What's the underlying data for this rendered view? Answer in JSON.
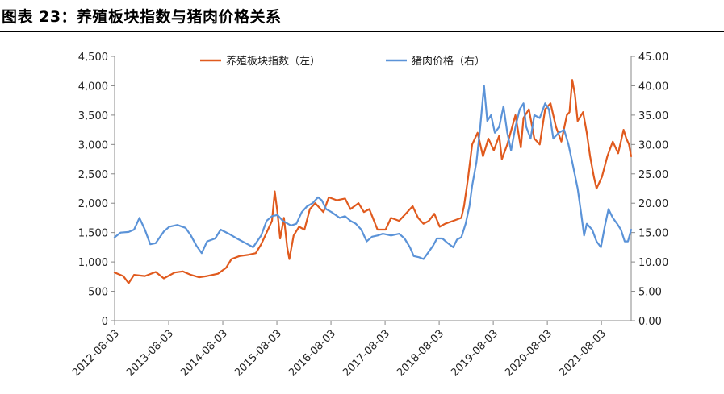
{
  "title": "图表 23：养殖板块指数与猪肉价格关系",
  "chart_data": {
    "type": "line",
    "title": "",
    "xlabel": "",
    "ylabel_left": "",
    "ylabel_right": "",
    "legend_position": "top",
    "grid": false,
    "x_tick_labels": [
      "2012-08-03",
      "2013-08-03",
      "2014-08-03",
      "2015-08-03",
      "2016-08-03",
      "2017-08-03",
      "2018-08-03",
      "2019-08-03",
      "2020-08-03",
      "2021-08-03"
    ],
    "x_range": [
      2012.59,
      2022.14
    ],
    "y_left": {
      "range": [
        0,
        4500
      ],
      "ticks": [
        "0",
        "500",
        "1,000",
        "1,500",
        "2,000",
        "2,500",
        "3,000",
        "3,500",
        "4,000",
        "4,500"
      ]
    },
    "y_right": {
      "range": [
        0,
        45
      ],
      "ticks": [
        "0.00",
        "5.00",
        "10.00",
        "15.00",
        "20.00",
        "25.00",
        "30.00",
        "35.00",
        "40.00",
        "45.00"
      ]
    },
    "series": [
      {
        "name": "养殖板块指数（左）",
        "axis": "left",
        "color": "#e05a1e",
        "points": [
          [
            2012.59,
            820
          ],
          [
            2012.75,
            760
          ],
          [
            2012.85,
            640
          ],
          [
            2012.95,
            780
          ],
          [
            2013.15,
            760
          ],
          [
            2013.35,
            830
          ],
          [
            2013.5,
            720
          ],
          [
            2013.7,
            820
          ],
          [
            2013.85,
            840
          ],
          [
            2014.0,
            780
          ],
          [
            2014.15,
            740
          ],
          [
            2014.3,
            760
          ],
          [
            2014.5,
            800
          ],
          [
            2014.65,
            900
          ],
          [
            2014.75,
            1050
          ],
          [
            2014.9,
            1100
          ],
          [
            2015.05,
            1120
          ],
          [
            2015.2,
            1150
          ],
          [
            2015.3,
            1300
          ],
          [
            2015.4,
            1500
          ],
          [
            2015.5,
            1700
          ],
          [
            2015.55,
            2200
          ],
          [
            2015.6,
            1850
          ],
          [
            2015.65,
            1400
          ],
          [
            2015.72,
            1750
          ],
          [
            2015.78,
            1250
          ],
          [
            2015.82,
            1050
          ],
          [
            2015.9,
            1450
          ],
          [
            2016.0,
            1600
          ],
          [
            2016.1,
            1550
          ],
          [
            2016.2,
            1900
          ],
          [
            2016.3,
            2000
          ],
          [
            2016.45,
            1850
          ],
          [
            2016.55,
            2100
          ],
          [
            2016.7,
            2050
          ],
          [
            2016.85,
            2080
          ],
          [
            2016.95,
            1900
          ],
          [
            2017.1,
            2000
          ],
          [
            2017.2,
            1850
          ],
          [
            2017.3,
            1900
          ],
          [
            2017.45,
            1550
          ],
          [
            2017.6,
            1550
          ],
          [
            2017.7,
            1750
          ],
          [
            2017.85,
            1700
          ],
          [
            2018.0,
            1850
          ],
          [
            2018.1,
            1950
          ],
          [
            2018.2,
            1750
          ],
          [
            2018.3,
            1650
          ],
          [
            2018.4,
            1700
          ],
          [
            2018.5,
            1820
          ],
          [
            2018.6,
            1600
          ],
          [
            2018.7,
            1650
          ],
          [
            2018.85,
            1700
          ],
          [
            2019.0,
            1750
          ],
          [
            2019.05,
            1950
          ],
          [
            2019.12,
            2400
          ],
          [
            2019.2,
            3000
          ],
          [
            2019.3,
            3200
          ],
          [
            2019.4,
            2800
          ],
          [
            2019.5,
            3100
          ],
          [
            2019.6,
            2900
          ],
          [
            2019.7,
            3150
          ],
          [
            2019.75,
            2750
          ],
          [
            2019.85,
            3000
          ],
          [
            2020.0,
            3500
          ],
          [
            2020.1,
            2950
          ],
          [
            2020.15,
            3450
          ],
          [
            2020.25,
            3600
          ],
          [
            2020.35,
            3100
          ],
          [
            2020.45,
            3000
          ],
          [
            2020.55,
            3600
          ],
          [
            2020.65,
            3700
          ],
          [
            2020.75,
            3300
          ],
          [
            2020.85,
            3050
          ],
          [
            2020.95,
            3500
          ],
          [
            2021.0,
            3550
          ],
          [
            2021.05,
            4100
          ],
          [
            2021.1,
            3850
          ],
          [
            2021.15,
            3400
          ],
          [
            2021.25,
            3550
          ],
          [
            2021.32,
            3200
          ],
          [
            2021.38,
            2800
          ],
          [
            2021.45,
            2450
          ],
          [
            2021.5,
            2250
          ],
          [
            2021.6,
            2450
          ],
          [
            2021.7,
            2800
          ],
          [
            2021.8,
            3050
          ],
          [
            2021.9,
            2850
          ],
          [
            2022.0,
            3250
          ],
          [
            2022.05,
            3100
          ],
          [
            2022.1,
            3000
          ],
          [
            2022.14,
            2800
          ]
        ]
      },
      {
        "name": "猪肉价格（右）",
        "axis": "right",
        "color": "#5b93d8",
        "points": [
          [
            2012.59,
            14.2
          ],
          [
            2012.7,
            15.0
          ],
          [
            2012.85,
            15.1
          ],
          [
            2012.95,
            15.5
          ],
          [
            2013.05,
            17.5
          ],
          [
            2013.15,
            15.5
          ],
          [
            2013.25,
            13.0
          ],
          [
            2013.35,
            13.2
          ],
          [
            2013.5,
            15.2
          ],
          [
            2013.6,
            16.0
          ],
          [
            2013.75,
            16.3
          ],
          [
            2013.9,
            15.8
          ],
          [
            2014.0,
            14.5
          ],
          [
            2014.1,
            12.8
          ],
          [
            2014.2,
            11.5
          ],
          [
            2014.3,
            13.5
          ],
          [
            2014.45,
            14.0
          ],
          [
            2014.55,
            15.5
          ],
          [
            2014.7,
            14.8
          ],
          [
            2014.85,
            14.0
          ],
          [
            2014.95,
            13.5
          ],
          [
            2015.05,
            13.0
          ],
          [
            2015.15,
            12.5
          ],
          [
            2015.3,
            14.5
          ],
          [
            2015.4,
            17.0
          ],
          [
            2015.5,
            17.8
          ],
          [
            2015.6,
            18.0
          ],
          [
            2015.7,
            17.0
          ],
          [
            2015.85,
            16.2
          ],
          [
            2015.95,
            16.5
          ],
          [
            2016.05,
            18.5
          ],
          [
            2016.15,
            19.5
          ],
          [
            2016.25,
            20.0
          ],
          [
            2016.35,
            21.0
          ],
          [
            2016.42,
            20.5
          ],
          [
            2016.5,
            19.0
          ],
          [
            2016.6,
            18.5
          ],
          [
            2016.75,
            17.5
          ],
          [
            2016.85,
            17.8
          ],
          [
            2016.95,
            17.0
          ],
          [
            2017.05,
            16.5
          ],
          [
            2017.15,
            15.5
          ],
          [
            2017.25,
            13.5
          ],
          [
            2017.35,
            14.3
          ],
          [
            2017.45,
            14.5
          ],
          [
            2017.55,
            14.8
          ],
          [
            2017.7,
            14.5
          ],
          [
            2017.85,
            14.8
          ],
          [
            2017.95,
            14.0
          ],
          [
            2018.05,
            12.5
          ],
          [
            2018.12,
            11.0
          ],
          [
            2018.22,
            10.8
          ],
          [
            2018.3,
            10.5
          ],
          [
            2018.38,
            11.5
          ],
          [
            2018.48,
            12.8
          ],
          [
            2018.55,
            14.0
          ],
          [
            2018.65,
            14.0
          ],
          [
            2018.75,
            13.2
          ],
          [
            2018.85,
            12.5
          ],
          [
            2018.92,
            13.8
          ],
          [
            2019.0,
            14.2
          ],
          [
            2019.08,
            16.5
          ],
          [
            2019.15,
            19.5
          ],
          [
            2019.2,
            23.0
          ],
          [
            2019.28,
            27.0
          ],
          [
            2019.35,
            33.0
          ],
          [
            2019.42,
            40.0
          ],
          [
            2019.48,
            34.0
          ],
          [
            2019.55,
            35.0
          ],
          [
            2019.62,
            32.0
          ],
          [
            2019.7,
            33.0
          ],
          [
            2019.78,
            36.5
          ],
          [
            2019.85,
            32.0
          ],
          [
            2019.92,
            29.0
          ],
          [
            2020.0,
            33.0
          ],
          [
            2020.08,
            36.0
          ],
          [
            2020.15,
            37.0
          ],
          [
            2020.2,
            33.0
          ],
          [
            2020.28,
            31.0
          ],
          [
            2020.35,
            35.0
          ],
          [
            2020.45,
            34.5
          ],
          [
            2020.55,
            37.0
          ],
          [
            2020.62,
            36.0
          ],
          [
            2020.7,
            31.0
          ],
          [
            2020.8,
            32.0
          ],
          [
            2020.9,
            32.5
          ],
          [
            2020.98,
            30.0
          ],
          [
            2021.05,
            27.0
          ],
          [
            2021.15,
            22.5
          ],
          [
            2021.22,
            18.0
          ],
          [
            2021.27,
            14.5
          ],
          [
            2021.32,
            16.5
          ],
          [
            2021.42,
            15.5
          ],
          [
            2021.5,
            13.5
          ],
          [
            2021.58,
            12.5
          ],
          [
            2021.65,
            16.0
          ],
          [
            2021.72,
            19.0
          ],
          [
            2021.8,
            17.5
          ],
          [
            2021.88,
            16.5
          ],
          [
            2021.95,
            15.5
          ],
          [
            2022.02,
            13.5
          ],
          [
            2022.08,
            13.5
          ],
          [
            2022.14,
            15.5
          ]
        ]
      }
    ]
  }
}
